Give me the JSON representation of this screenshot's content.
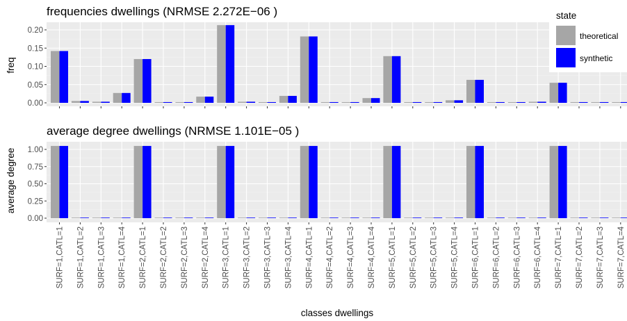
{
  "chart_data": [
    {
      "type": "bar",
      "title": "frequencies dwellings  (NRMSE  2.272E−06 )",
      "xlabel": "",
      "ylabel": "freq",
      "ylim": [
        0,
        0.22
      ],
      "yticks": [
        "0.00",
        "0.05",
        "0.10",
        "0.15",
        "0.20"
      ],
      "ytick_values": [
        0,
        0.05,
        0.1,
        0.15,
        0.2
      ],
      "grid": true,
      "categories": [
        "SURF=1,CATL=1",
        "SURF=1,CATL=2",
        "SURF=1,CATL=3",
        "SURF=1,CATL=4",
        "SURF=2,CATL=1",
        "SURF=2,CATL=2",
        "SURF=2,CATL=3",
        "SURF=2,CATL=4",
        "SURF=3,CATL=1",
        "SURF=3,CATL=2",
        "SURF=3,CATL=3",
        "SURF=3,CATL=4",
        "SURF=4,CATL=1",
        "SURF=4,CATL=2",
        "SURF=4,CATL=3",
        "SURF=4,CATL=4",
        "SURF=5,CATL=1",
        "SURF=5,CATL=2",
        "SURF=5,CATL=3",
        "SURF=5,CATL=4",
        "SURF=6,CATL=1",
        "SURF=6,CATL=2",
        "SURF=6,CATL=3",
        "SURF=6,CATL=4",
        "SURF=7,CATL=1",
        "SURF=7,CATL=2",
        "SURF=7,CATL=3",
        "SURF=7,CATL=4"
      ],
      "series": [
        {
          "name": "theoretical",
          "color": "#a6a6a6",
          "values": [
            0.142,
            0.005,
            0.003,
            0.027,
            0.12,
            0.002,
            0.002,
            0.017,
            0.213,
            0.003,
            0.002,
            0.019,
            0.182,
            0.002,
            0.002,
            0.013,
            0.128,
            0.002,
            0.002,
            0.007,
            0.063,
            0.002,
            0.002,
            0.003,
            0.055,
            0.002,
            0.002,
            0.002
          ]
        },
        {
          "name": "synthetic",
          "color": "#0000ff",
          "values": [
            0.142,
            0.005,
            0.003,
            0.027,
            0.12,
            0.002,
            0.002,
            0.017,
            0.213,
            0.003,
            0.002,
            0.019,
            0.182,
            0.002,
            0.002,
            0.013,
            0.128,
            0.002,
            0.002,
            0.007,
            0.063,
            0.002,
            0.002,
            0.003,
            0.055,
            0.002,
            0.002,
            0.002
          ]
        }
      ]
    },
    {
      "type": "bar",
      "title": "average degree dwellings  (NRMSE  1.101E−05 )",
      "xlabel": "classes dwellings",
      "ylabel": "average degree",
      "ylim": [
        0,
        1.1
      ],
      "yticks": [
        "0.00",
        "0.25",
        "0.50",
        "0.75",
        "1.00"
      ],
      "ytick_values": [
        0,
        0.25,
        0.5,
        0.75,
        1.0
      ],
      "grid": true,
      "categories": [
        "SURF=1,CATL=1",
        "SURF=1,CATL=2",
        "SURF=1,CATL=3",
        "SURF=1,CATL=4",
        "SURF=2,CATL=1",
        "SURF=2,CATL=2",
        "SURF=2,CATL=3",
        "SURF=2,CATL=4",
        "SURF=3,CATL=1",
        "SURF=3,CATL=2",
        "SURF=3,CATL=3",
        "SURF=3,CATL=4",
        "SURF=4,CATL=1",
        "SURF=4,CATL=2",
        "SURF=4,CATL=3",
        "SURF=4,CATL=4",
        "SURF=5,CATL=1",
        "SURF=5,CATL=2",
        "SURF=5,CATL=3",
        "SURF=5,CATL=4",
        "SURF=6,CATL=1",
        "SURF=6,CATL=2",
        "SURF=6,CATL=3",
        "SURF=6,CATL=4",
        "SURF=7,CATL=1",
        "SURF=7,CATL=2",
        "SURF=7,CATL=3",
        "SURF=7,CATL=4"
      ],
      "series": [
        {
          "name": "theoretical",
          "color": "#a6a6a6",
          "values": [
            1.05,
            0.005,
            0.005,
            0.005,
            1.05,
            0.005,
            0.005,
            0.005,
            1.05,
            0.005,
            0.005,
            0.005,
            1.05,
            0.005,
            0.005,
            0.005,
            1.05,
            0.005,
            0.005,
            0.005,
            1.05,
            0.005,
            0.005,
            0.005,
            1.05,
            0.005,
            0.005,
            0.005
          ]
        },
        {
          "name": "synthetic",
          "color": "#0000ff",
          "values": [
            1.05,
            0.005,
            0.005,
            0.005,
            1.05,
            0.005,
            0.005,
            0.005,
            1.05,
            0.005,
            0.005,
            0.005,
            1.05,
            0.005,
            0.005,
            0.005,
            1.05,
            0.005,
            0.005,
            0.005,
            1.05,
            0.005,
            0.005,
            0.005,
            1.05,
            0.005,
            0.005,
            0.005
          ]
        }
      ]
    }
  ],
  "legend": {
    "title": "state",
    "placement": "top-right",
    "items": [
      {
        "label": "theoretical",
        "color": "#a6a6a6"
      },
      {
        "label": "synthetic",
        "color": "#0000ff"
      }
    ]
  }
}
